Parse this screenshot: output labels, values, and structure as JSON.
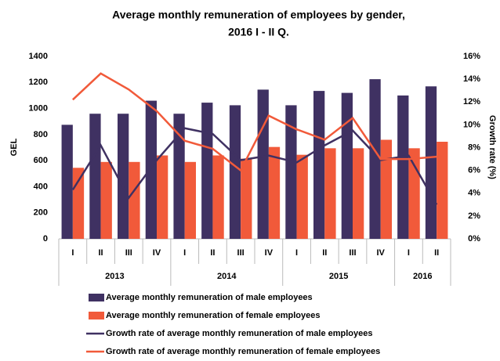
{
  "chart_data": {
    "type": "bar_line",
    "title": "Average monthly remuneration  of employees by gender,",
    "subtitle": "2016 I - II Q.",
    "y_label": "GEL",
    "y2_label": "Growth rate (%)",
    "category_groups": [
      {
        "label": "2013",
        "categories": [
          "I",
          "II",
          "III",
          "IV"
        ]
      },
      {
        "label": "2014",
        "categories": [
          "I",
          "II",
          "III",
          "IV"
        ]
      },
      {
        "label": "2015",
        "categories": [
          "I",
          "II",
          "III",
          "IV"
        ]
      },
      {
        "label": "2016",
        "categories": [
          "I",
          "II"
        ]
      }
    ],
    "series": [
      {
        "name": "Average monthly remuneration of male employees",
        "type": "bar",
        "color": "#3f3162",
        "values": [
          875,
          960,
          960,
          1060,
          960,
          1045,
          1025,
          1145,
          1025,
          1135,
          1120,
          1225,
          1100,
          1170
        ]
      },
      {
        "name": "Average monthly remuneration of female employees",
        "type": "bar",
        "color": "#f15a3a",
        "values": [
          545,
          590,
          590,
          640,
          590,
          640,
          615,
          705,
          645,
          695,
          695,
          760,
          695,
          745
        ]
      },
      {
        "name": "Growth rate of average monthly remuneration of male employees",
        "type": "line",
        "axis": "y2",
        "color": "#3f3162",
        "values": [
          4.3,
          8.2,
          3.6,
          6.9,
          9.7,
          9.2,
          6.9,
          7.3,
          6.7,
          8.2,
          9.5,
          6.9,
          7.3,
          3.0
        ]
      },
      {
        "name": "Growth rate of average monthly remuneration of female employees",
        "type": "line",
        "axis": "y2",
        "color": "#f15a3a",
        "values": [
          12.2,
          14.5,
          13.1,
          11.2,
          8.6,
          7.9,
          6.0,
          10.8,
          9.6,
          8.7,
          10.6,
          7.0,
          7.0,
          7.2
        ]
      }
    ],
    "ylim": [
      0,
      1400
    ],
    "yticks": [
      0,
      200,
      400,
      600,
      800,
      1000,
      1200,
      1400
    ],
    "y2lim": [
      0,
      16
    ],
    "y2ticks": [
      {
        "value": 0,
        "label": "0%"
      },
      {
        "value": 2,
        "label": "2%"
      },
      {
        "value": 4,
        "label": "4%"
      },
      {
        "value": 6,
        "label": "6%"
      },
      {
        "value": 8,
        "label": "8%"
      },
      {
        "value": 10,
        "label": "10%"
      },
      {
        "value": 12,
        "label": "12%"
      },
      {
        "value": 14,
        "label": "14%"
      },
      {
        "value": 16,
        "label": "16%"
      }
    ],
    "legend": "bottom"
  }
}
